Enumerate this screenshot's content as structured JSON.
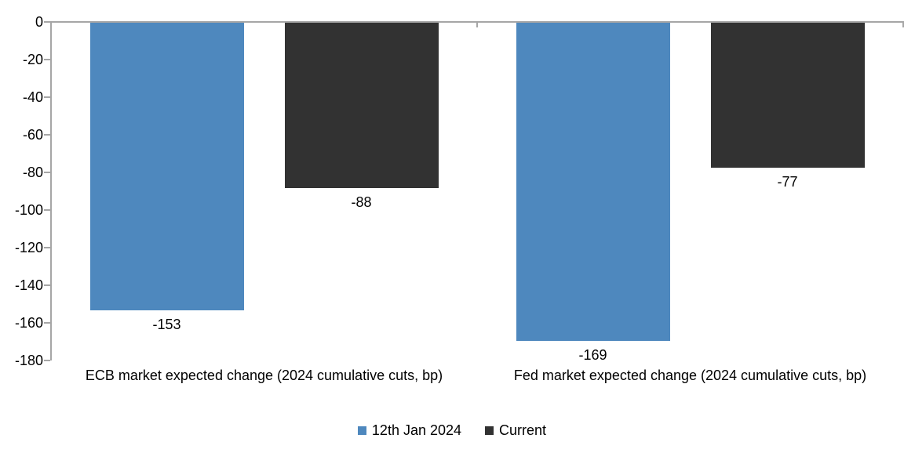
{
  "chart_data": {
    "type": "bar",
    "title": "",
    "xlabel": "",
    "ylabel": "",
    "categories": [
      "ECB market expected change (2024 cumulative cuts, bp)",
      "Fed market expected change (2024 cumulative cuts, bp)"
    ],
    "series": [
      {
        "name": "12th Jan 2024",
        "color": "#4E88BE",
        "values": [
          -153,
          -169
        ],
        "data_labels": [
          "-153",
          "-169"
        ]
      },
      {
        "name": "Current",
        "color": "#323232",
        "values": [
          -88,
          -77
        ],
        "data_labels": [
          "-88",
          "-77"
        ]
      }
    ],
    "ylim": [
      -180,
      0
    ],
    "ytick_step": 20,
    "ytick_labels": [
      "0",
      "-20",
      "-40",
      "-60",
      "-80",
      "-100",
      "-120",
      "-140",
      "-160",
      "-180"
    ],
    "grid": false,
    "legend_position": "bottom",
    "colors": {
      "axis": "#A6A6A6",
      "text": "#000000",
      "background": "#FFFFFF"
    }
  }
}
